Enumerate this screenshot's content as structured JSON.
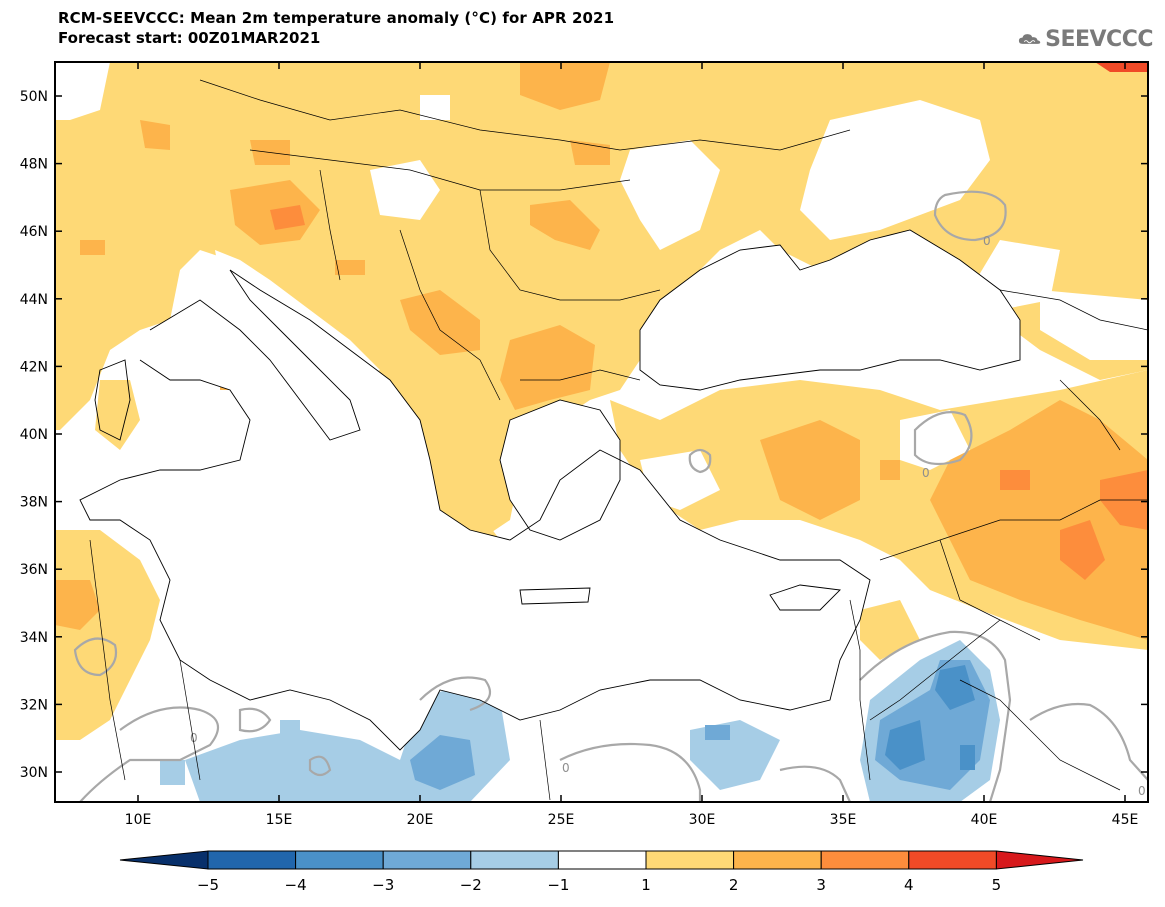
{
  "header": {
    "title": "RCM-SEEVCCC: Mean 2m temperature anomaly (°C) for APR 2021",
    "subtitle": "Forecast start: 00Z01MAR2021"
  },
  "logo": {
    "text": "SEEVCCC",
    "icon": "cloud-icon"
  },
  "map": {
    "lat_labels": [
      "50N",
      "48N",
      "46N",
      "44N",
      "42N",
      "40N",
      "38N",
      "36N",
      "34N",
      "32N",
      "30N"
    ],
    "lon_labels": [
      "10E",
      "15E",
      "20E",
      "25E",
      "30E",
      "35E",
      "40E",
      "45E"
    ],
    "contour_label": "0"
  },
  "colorbar": {
    "labels": [
      "−5",
      "−4",
      "−3",
      "−2",
      "−1",
      "1",
      "2",
      "3",
      "4",
      "5"
    ],
    "colors": [
      "#08306b",
      "#2166ac",
      "#4a91c8",
      "#6fa9d6",
      "#a6cde6",
      "#ffffff",
      "#fed976",
      "#fdb44b",
      "#fd8d3c",
      "#f04a27",
      "#d7191c"
    ]
  }
}
